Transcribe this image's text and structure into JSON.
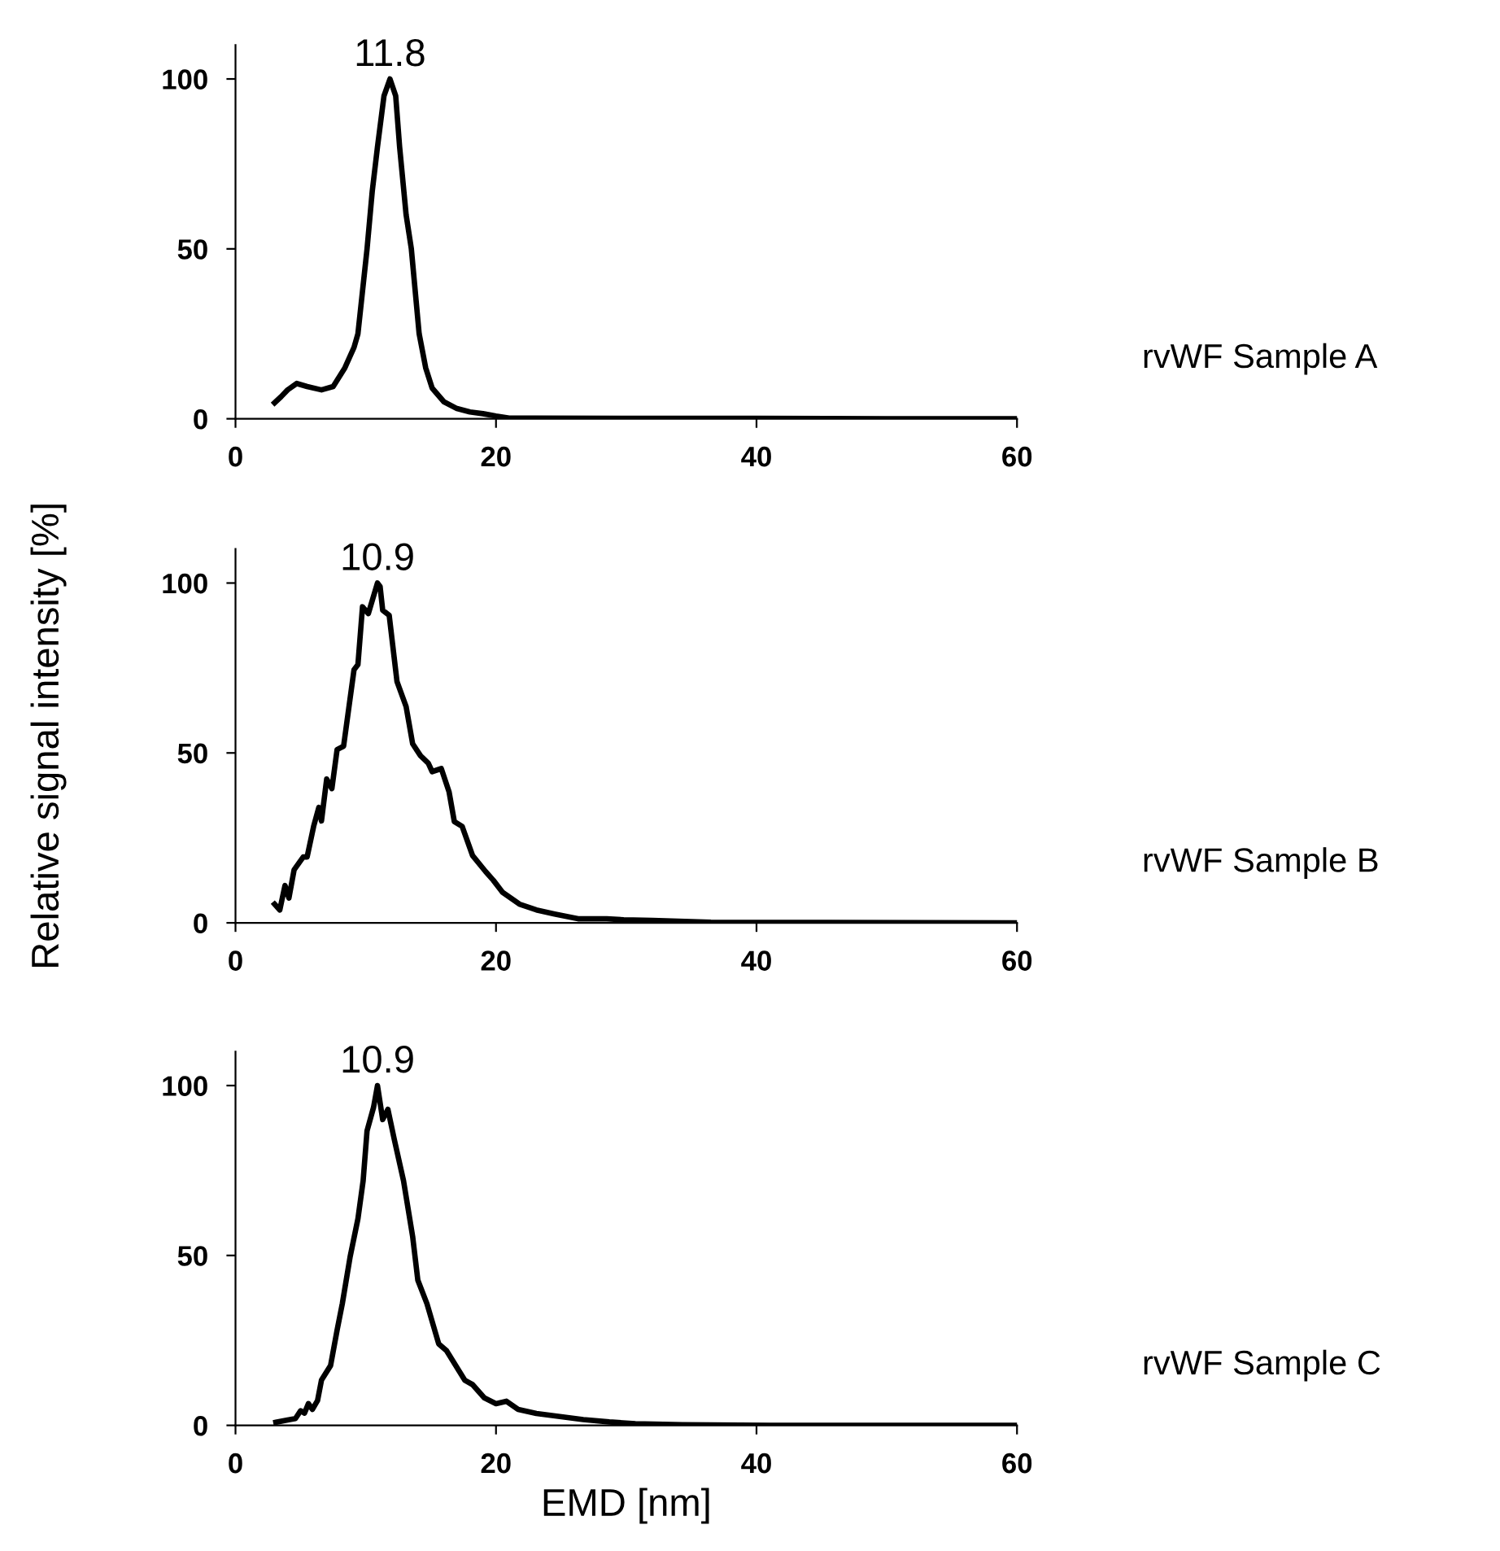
{
  "chart_data": [
    {
      "type": "line",
      "xlim": [
        0,
        60
      ],
      "ylim": [
        0,
        110
      ],
      "xticks": [
        0,
        20,
        40,
        60
      ],
      "yticks": [
        0,
        50,
        100
      ],
      "grid": false,
      "legend": false,
      "marker": "none",
      "line_style": "solid",
      "series": [
        {
          "color": "#000000",
          "x": [
            3,
            3.5,
            4,
            4.7,
            5.5,
            6.6,
            7.5,
            8.4,
            9.1,
            9.4,
            10.1,
            10.5,
            10.9,
            11.4,
            11.86,
            12.3,
            12.6,
            13.1,
            13.5,
            14.1,
            14.6,
            15.1,
            16,
            17,
            18,
            19,
            20,
            21,
            23,
            30,
            40,
            50,
            60
          ],
          "values": [
            4.7,
            6.5,
            8.5,
            10.4,
            9.5,
            8.5,
            9.5,
            15,
            21,
            25,
            50,
            67,
            80,
            95,
            100,
            95,
            80,
            60,
            50,
            25,
            15,
            9,
            5,
            3,
            2,
            1.5,
            0.8,
            0.2,
            0.2,
            0.1,
            0.1,
            0,
            0
          ]
        }
      ],
      "annotations": [
        "11.8",
        "rvWF Sample A"
      ]
    },
    {
      "type": "line",
      "xlim": [
        0,
        60
      ],
      "ylim": [
        0,
        110
      ],
      "xticks": [
        0,
        20,
        40,
        60
      ],
      "yticks": [
        0,
        50,
        100
      ],
      "grid": false,
      "legend": false,
      "marker": "none",
      "line_style": "solid",
      "ylabel": "Relative signal intensity [%]",
      "series": [
        {
          "color": "#000000",
          "x": [
            3.0,
            3.4,
            3.8,
            4.1,
            4.5,
            5.2,
            5.5,
            6.0,
            6.4,
            6.6,
            7.0,
            7.4,
            7.8,
            8.3,
            9.1,
            9.4,
            9.75,
            10.2,
            10.9,
            11.1,
            11.3,
            11.8,
            12.4,
            13.1,
            13.6,
            14.2,
            14.8,
            15.1,
            15.8,
            16.4,
            16.8,
            17.4,
            18.2,
            19.2,
            19.8,
            20.5,
            21.8,
            23.1,
            24.5,
            26.3,
            28.5,
            29.8,
            32,
            36.5,
            45,
            60
          ],
          "values": [
            5.5,
            3.8,
            11,
            7.3,
            15.6,
            19.4,
            19.4,
            28.4,
            34,
            30,
            42.3,
            39.5,
            51,
            52,
            74.5,
            76,
            93,
            91,
            100,
            99,
            92,
            90.5,
            71,
            63.6,
            52.7,
            49.2,
            47,
            44.5,
            45.4,
            38.5,
            29.8,
            28.4,
            19.8,
            15.1,
            12.5,
            9,
            5.5,
            3.8,
            2.6,
            1.2,
            1.2,
            0.9,
            0.7,
            0.2,
            0.1,
            0
          ]
        }
      ],
      "annotations": [
        "10.9",
        "rvWF Sample B"
      ]
    },
    {
      "type": "line",
      "xlim": [
        0,
        60
      ],
      "ylim": [
        0,
        110
      ],
      "xticks": [
        0,
        20,
        40,
        60
      ],
      "yticks": [
        0,
        50,
        100
      ],
      "grid": false,
      "legend": false,
      "marker": "none",
      "line_style": "solid",
      "xlabel": "EMD [nm]",
      "series": [
        {
          "color": "#000000",
          "x": [
            3.1,
            4.0,
            4.6,
            5,
            5.3,
            5.6,
            5.9,
            6.3,
            6.6,
            7.3,
            7.8,
            8.2,
            8.8,
            9.4,
            9.8,
            10.1,
            10.6,
            10.9,
            11.3,
            11.7,
            12.2,
            12.9,
            13.6,
            14.0,
            14.7,
            15.6,
            16.2,
            17.6,
            18.2,
            19.1,
            20,
            20.8,
            21.7,
            23.1,
            24.9,
            26.7,
            28.7,
            30.7,
            34.3,
            41,
            60
          ],
          "values": [
            0.9,
            1.6,
            2,
            4.3,
            3.6,
            6.4,
            4.7,
            7.3,
            13.3,
            17.6,
            28,
            35.8,
            49.6,
            60.8,
            72,
            86.7,
            93.6,
            100,
            90,
            93,
            84,
            72,
            55.6,
            42.7,
            35.8,
            24,
            22,
            13.3,
            12,
            8.1,
            6.4,
            7.1,
            4.7,
            3.5,
            2.6,
            1.7,
            1.0,
            0.5,
            0.2,
            0,
            0
          ]
        }
      ],
      "annotations": [
        "10.9",
        "rvWF Sample C"
      ]
    }
  ]
}
